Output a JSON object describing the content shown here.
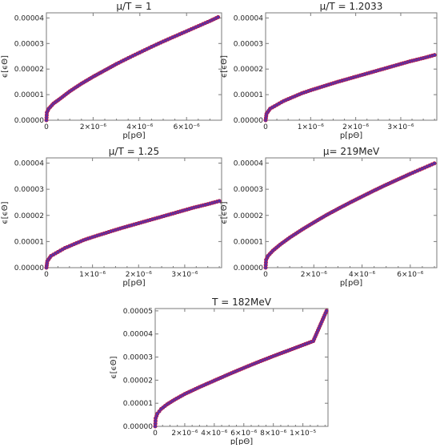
{
  "chart_data": [
    {
      "type": "scatter",
      "title": "μ/T = 1",
      "xlabel": "p[pΘ]",
      "ylabel": "ϵ[ϵΘ]",
      "xlim": [
        0,
        7.5e-06
      ],
      "ylim": [
        0,
        4.2e-05
      ],
      "x_ticks": [
        0,
        2e-06,
        4e-06,
        6e-06
      ],
      "x_tick_labels": [
        "0",
        "2×10⁻⁶",
        "4×10⁻⁶",
        "6×10⁻⁶"
      ],
      "y_ticks": [
        0,
        1e-05,
        2e-05,
        3e-05,
        4e-05
      ],
      "y_tick_labels": [
        "0.00000",
        "0.00001",
        "0.00002",
        "0.00003",
        "0.00004"
      ],
      "points": [
        [
          0,
          0
        ],
        [
          2e-08,
          3e-06
        ],
        [
          1e-07,
          4.5e-06
        ],
        [
          3e-07,
          6.5e-06
        ],
        [
          6e-07,
          8.5e-06
        ],
        [
          1e-06,
          1.13e-05
        ],
        [
          1.5e-06,
          1.43e-05
        ],
        [
          2e-06,
          1.7e-05
        ],
        [
          2.5e-06,
          1.95e-05
        ],
        [
          3e-06,
          2.2e-05
        ],
        [
          3.5e-06,
          2.43e-05
        ],
        [
          4e-06,
          2.65e-05
        ],
        [
          4.5e-06,
          2.87e-05
        ],
        [
          5e-06,
          3.08e-05
        ],
        [
          5.5e-06,
          3.28e-05
        ],
        [
          6e-06,
          3.48e-05
        ],
        [
          6.5e-06,
          3.68e-05
        ],
        [
          7e-06,
          3.88e-05
        ],
        [
          7.35e-06,
          4.03e-05
        ]
      ]
    },
    {
      "type": "scatter",
      "title": "μ/T = 1.2033",
      "xlabel": "p[pΘ]",
      "ylabel": "ϵ[ϵΘ]",
      "xlim": [
        0,
        3.8e-06
      ],
      "ylim": [
        0,
        4.2e-05
      ],
      "x_ticks": [
        0,
        1e-06,
        2e-06,
        3e-06
      ],
      "x_tick_labels": [
        "0",
        "1×10⁻⁶",
        "2×10⁻⁶",
        "3×10⁻⁶"
      ],
      "y_ticks": [
        0,
        1e-05,
        2e-05,
        3e-05,
        4e-05
      ],
      "y_tick_labels": [
        "0.00000",
        "0.00001",
        "0.00002",
        "0.00003",
        "0.00004"
      ],
      "points": [
        [
          0,
          0
        ],
        [
          2e-08,
          2.5e-06
        ],
        [
          1e-07,
          4.5e-06
        ],
        [
          2e-07,
          5.5e-06
        ],
        [
          4e-07,
          7.5e-06
        ],
        [
          6e-07,
          9e-06
        ],
        [
          8e-07,
          1.05e-05
        ],
        [
          1e-06,
          1.17e-05
        ],
        [
          1.2e-06,
          1.28e-05
        ],
        [
          1.4e-06,
          1.39e-05
        ],
        [
          1.6e-06,
          1.5e-05
        ],
        [
          1.8e-06,
          1.6e-05
        ],
        [
          2e-06,
          1.7e-05
        ],
        [
          2.3e-06,
          1.85e-05
        ],
        [
          2.6e-06,
          2e-05
        ],
        [
          2.9e-06,
          2.15e-05
        ],
        [
          3.2e-06,
          2.3e-05
        ],
        [
          3.5e-06,
          2.43e-05
        ],
        [
          3.75e-06,
          2.55e-05
        ]
      ]
    },
    {
      "type": "scatter",
      "title": "μ/T = 1.25",
      "xlabel": "p[pΘ]",
      "ylabel": "ϵ[ϵΘ]",
      "xlim": [
        0,
        3.8e-06
      ],
      "ylim": [
        0,
        4.2e-05
      ],
      "x_ticks": [
        0,
        1e-06,
        2e-06,
        3e-06
      ],
      "x_tick_labels": [
        "0",
        "1×10⁻⁶",
        "2×10⁻⁶",
        "3×10⁻⁶"
      ],
      "y_ticks": [
        0,
        1e-05,
        2e-05,
        3e-05,
        4e-05
      ],
      "y_tick_labels": [
        "0.00000",
        "0.00001",
        "0.00002",
        "0.00003",
        "0.00004"
      ],
      "points": [
        [
          0,
          0
        ],
        [
          2e-08,
          2.5e-06
        ],
        [
          1e-07,
          4.5e-06
        ],
        [
          2e-07,
          5.5e-06
        ],
        [
          4e-07,
          7.5e-06
        ],
        [
          6e-07,
          9e-06
        ],
        [
          8e-07,
          1.05e-05
        ],
        [
          1e-06,
          1.17e-05
        ],
        [
          1.2e-06,
          1.28e-05
        ],
        [
          1.4e-06,
          1.39e-05
        ],
        [
          1.6e-06,
          1.5e-05
        ],
        [
          1.8e-06,
          1.6e-05
        ],
        [
          2e-06,
          1.7e-05
        ],
        [
          2.3e-06,
          1.85e-05
        ],
        [
          2.6e-06,
          2e-05
        ],
        [
          2.9e-06,
          2.15e-05
        ],
        [
          3.2e-06,
          2.3e-05
        ],
        [
          3.5e-06,
          2.43e-05
        ],
        [
          3.75e-06,
          2.55e-05
        ]
      ]
    },
    {
      "type": "scatter",
      "title": "μ= 219MeV",
      "xlabel": "p[pΘ]",
      "ylabel": "ϵ[ϵΘ]",
      "xlim": [
        0,
        7.1e-06
      ],
      "ylim": [
        0,
        4.2e-05
      ],
      "x_ticks": [
        0,
        2e-06,
        4e-06,
        6e-06
      ],
      "x_tick_labels": [
        "0",
        "2×10⁻⁶",
        "4×10⁻⁶",
        "6×10⁻⁶"
      ],
      "y_ticks": [
        0,
        1e-05,
        2e-05,
        3e-05,
        4e-05
      ],
      "y_tick_labels": [
        "0.00000",
        "0.00001",
        "0.00002",
        "0.00003",
        "0.00004"
      ],
      "points": [
        [
          0,
          0
        ],
        [
          2e-08,
          3e-06
        ],
        [
          1e-07,
          4.5e-06
        ],
        [
          3e-07,
          6.5e-06
        ],
        [
          6e-07,
          8.8e-06
        ],
        [
          1e-06,
          1.15e-05
        ],
        [
          1.5e-06,
          1.45e-05
        ],
        [
          2e-06,
          1.73e-05
        ],
        [
          2.5e-06,
          2e-05
        ],
        [
          3e-06,
          2.25e-05
        ],
        [
          3.5e-06,
          2.49e-05
        ],
        [
          4e-06,
          2.72e-05
        ],
        [
          4.5e-06,
          2.95e-05
        ],
        [
          5e-06,
          3.17e-05
        ],
        [
          5.5e-06,
          3.38e-05
        ],
        [
          6e-06,
          3.59e-05
        ],
        [
          6.5e-06,
          3.79e-05
        ],
        [
          7e-06,
          3.99e-05
        ]
      ]
    },
    {
      "type": "scatter",
      "title": "T = 182MeV",
      "xlabel": "p[pΘ]",
      "ylabel": "ϵ[ϵΘ]",
      "xlim": [
        0,
        1.17e-05
      ],
      "ylim": [
        0,
        5.1e-05
      ],
      "x_ticks": [
        0,
        2e-06,
        4e-06,
        6e-06,
        8e-06,
        1e-05
      ],
      "x_tick_labels": [
        "0",
        "2×10⁻⁶",
        "4×10⁻⁶",
        "6×10⁻⁶",
        "8×10⁻⁶",
        "1×10⁻⁵"
      ],
      "y_ticks": [
        0,
        1e-05,
        2e-05,
        3e-05,
        4e-05,
        5e-05
      ],
      "y_tick_labels": [
        "0.00000",
        "0.00001",
        "0.00002",
        "0.00003",
        "0.00004",
        "0.00005"
      ],
      "points": [
        [
          0,
          0
        ],
        [
          3e-08,
          3.5e-06
        ],
        [
          1.5e-07,
          5.5e-06
        ],
        [
          4e-07,
          7.5e-06
        ],
        [
          8e-07,
          9.5e-06
        ],
        [
          1.3e-06,
          1.15e-05
        ],
        [
          2e-06,
          1.4e-05
        ],
        [
          3e-06,
          1.7e-05
        ],
        [
          4e-06,
          1.98e-05
        ],
        [
          5e-06,
          2.26e-05
        ],
        [
          6e-06,
          2.53e-05
        ],
        [
          7e-06,
          2.79e-05
        ],
        [
          8e-06,
          3.04e-05
        ],
        [
          9e-06,
          3.28e-05
        ],
        [
          1e-05,
          3.52e-05
        ],
        [
          1.07e-05,
          3.69e-05
        ],
        [
          1.16e-05,
          5e-05
        ]
      ]
    }
  ],
  "colors": {
    "fit_line": "#e02030",
    "points_fill": "#5533aa",
    "points_edge": "#cc1133",
    "axes": "#7a7a7a"
  }
}
